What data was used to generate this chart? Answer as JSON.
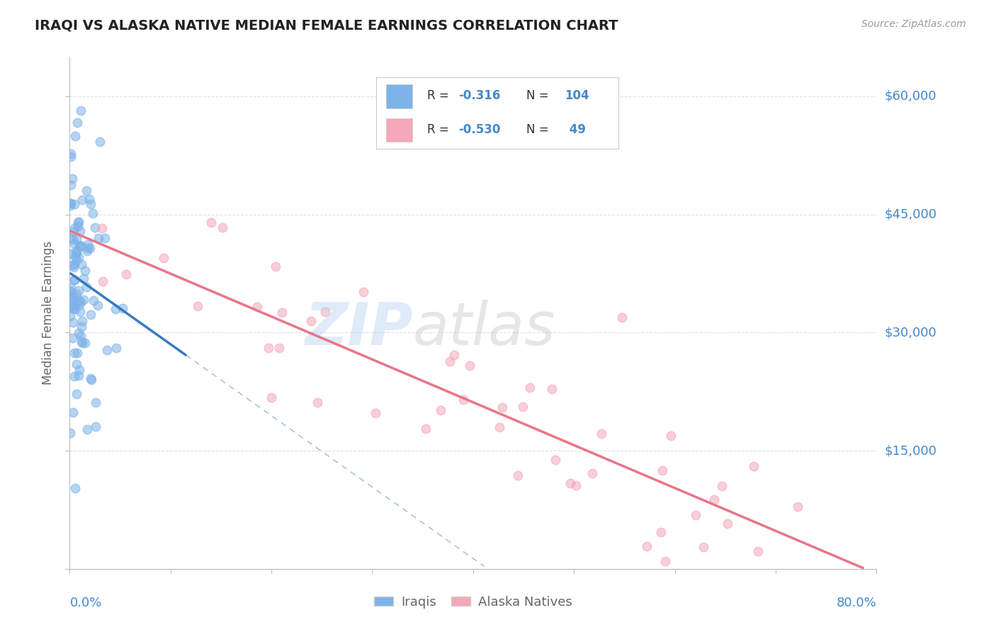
{
  "title": "IRAQI VS ALASKA NATIVE MEDIAN FEMALE EARNINGS CORRELATION CHART",
  "source": "Source: ZipAtlas.com",
  "ylabel": "Median Female Earnings",
  "xmin": 0.0,
  "xmax": 0.8,
  "ymin": 0,
  "ymax": 65000,
  "yticks": [
    0,
    15000,
    30000,
    45000,
    60000
  ],
  "xticks": [
    0.0,
    0.1,
    0.2,
    0.3,
    0.4,
    0.5,
    0.6,
    0.7,
    0.8
  ],
  "iraqi_color": "#7db3e8",
  "alaska_color": "#f4a8b8",
  "trend_iraqi_color": "#3a7abf",
  "trend_alaska_color": "#e8758a",
  "trend_dashed_color": "#aac4e0",
  "background_color": "#ffffff",
  "grid_color": "#e0e0e0",
  "text_color_blue": "#4488cc",
  "text_color_dark": "#333333",
  "text_color_mid": "#666666",
  "iraqi_seed": 10,
  "alaska_seed": 20,
  "iraqi_n": 104,
  "alaska_n": 49
}
